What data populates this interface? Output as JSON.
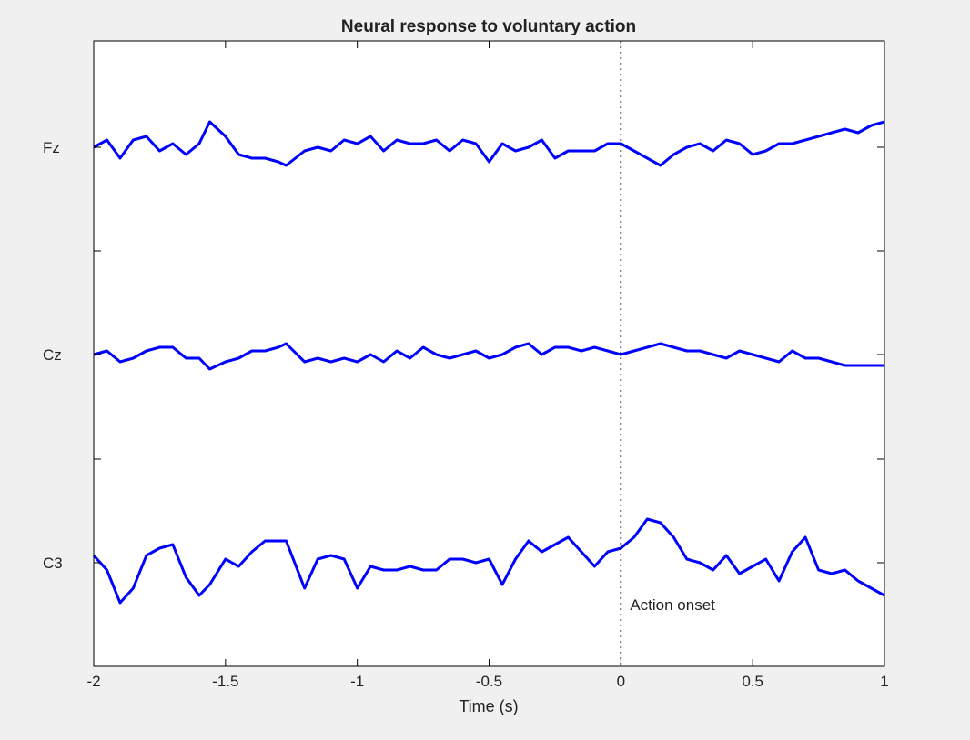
{
  "chart_data": {
    "type": "line",
    "title": "Neural response to voluntary action",
    "xlabel": "Time (s)",
    "ylabel": "",
    "xlim": [
      -2,
      1
    ],
    "x_ticks": [
      -2,
      -1.5,
      -1,
      -0.5,
      0,
      0.5,
      1
    ],
    "x_tick_labels": [
      "-2",
      "-1.5",
      "-1",
      "-0.5",
      "0",
      "0.5",
      "1"
    ],
    "channels": [
      "Fz",
      "Cz",
      "C3"
    ],
    "y_ticks": [
      "Fz",
      "",
      "Cz",
      "",
      "C3"
    ],
    "grid": false,
    "line_color": "#0000ff",
    "annotation": {
      "x": 0,
      "label": "Action onset",
      "line_style": "dotted"
    },
    "series": [
      {
        "name": "Fz",
        "x": [
          -2.0,
          -1.95,
          -1.9,
          -1.85,
          -1.8,
          -1.75,
          -1.7,
          -1.65,
          -1.6,
          -1.56,
          -1.5,
          -1.45,
          -1.4,
          -1.35,
          -1.3,
          -1.27,
          -1.2,
          -1.15,
          -1.1,
          -1.05,
          -1.0,
          -0.95,
          -0.9,
          -0.85,
          -0.8,
          -0.75,
          -0.7,
          -0.65,
          -0.6,
          -0.55,
          -0.5,
          -0.45,
          -0.4,
          -0.35,
          -0.3,
          -0.25,
          -0.2,
          -0.15,
          -0.1,
          -0.05,
          0.0,
          0.05,
          0.1,
          0.15,
          0.2,
          0.25,
          0.3,
          0.35,
          0.4,
          0.45,
          0.5,
          0.55,
          0.6,
          0.65,
          0.7,
          0.75,
          0.8,
          0.85,
          0.9,
          0.95,
          1.0
        ],
        "y": [
          0.0,
          0.1,
          -0.15,
          0.1,
          0.15,
          -0.05,
          0.05,
          -0.1,
          0.05,
          0.35,
          0.15,
          -0.1,
          -0.15,
          -0.15,
          -0.2,
          -0.25,
          -0.05,
          0.0,
          -0.05,
          0.1,
          0.05,
          0.15,
          -0.05,
          0.1,
          0.05,
          0.05,
          0.1,
          -0.05,
          0.1,
          0.05,
          -0.2,
          0.05,
          -0.05,
          0.0,
          0.1,
          -0.15,
          -0.05,
          -0.05,
          -0.05,
          0.05,
          0.05,
          -0.05,
          -0.15,
          -0.25,
          -0.1,
          0.0,
          0.05,
          -0.05,
          0.1,
          0.05,
          -0.1,
          -0.05,
          0.05,
          0.05,
          0.1,
          0.15,
          0.2,
          0.25,
          0.2,
          0.3,
          0.35
        ]
      },
      {
        "name": "Cz",
        "x": [
          -2.0,
          -1.95,
          -1.9,
          -1.85,
          -1.8,
          -1.75,
          -1.7,
          -1.65,
          -1.6,
          -1.56,
          -1.5,
          -1.45,
          -1.4,
          -1.35,
          -1.3,
          -1.27,
          -1.2,
          -1.15,
          -1.1,
          -1.05,
          -1.0,
          -0.95,
          -0.9,
          -0.85,
          -0.8,
          -0.75,
          -0.7,
          -0.65,
          -0.6,
          -0.55,
          -0.5,
          -0.45,
          -0.4,
          -0.35,
          -0.3,
          -0.25,
          -0.2,
          -0.15,
          -0.1,
          -0.05,
          0.0,
          0.05,
          0.1,
          0.15,
          0.2,
          0.25,
          0.3,
          0.35,
          0.4,
          0.45,
          0.5,
          0.55,
          0.6,
          0.65,
          0.7,
          0.75,
          0.8,
          0.85,
          0.9,
          0.95,
          1.0
        ],
        "y": [
          0.0,
          0.05,
          -0.1,
          -0.05,
          0.05,
          0.1,
          0.1,
          -0.05,
          -0.05,
          -0.2,
          -0.1,
          -0.05,
          0.05,
          0.05,
          0.1,
          0.15,
          -0.1,
          -0.05,
          -0.1,
          -0.05,
          -0.1,
          0.0,
          -0.1,
          0.05,
          -0.05,
          0.1,
          0.0,
          -0.05,
          0.0,
          0.05,
          -0.05,
          0.0,
          0.1,
          0.15,
          0.0,
          0.1,
          0.1,
          0.05,
          0.1,
          0.05,
          0.0,
          0.05,
          0.1,
          0.15,
          0.1,
          0.05,
          0.05,
          0.0,
          -0.05,
          0.05,
          0.0,
          -0.05,
          -0.1,
          0.05,
          -0.05,
          -0.05,
          -0.1,
          -0.15,
          -0.15,
          -0.15,
          -0.15
        ]
      },
      {
        "name": "C3",
        "x": [
          -2.0,
          -1.95,
          -1.9,
          -1.85,
          -1.8,
          -1.75,
          -1.7,
          -1.65,
          -1.6,
          -1.56,
          -1.5,
          -1.45,
          -1.4,
          -1.35,
          -1.3,
          -1.27,
          -1.2,
          -1.15,
          -1.1,
          -1.05,
          -1.0,
          -0.95,
          -0.9,
          -0.85,
          -0.8,
          -0.75,
          -0.7,
          -0.65,
          -0.6,
          -0.55,
          -0.5,
          -0.45,
          -0.4,
          -0.35,
          -0.3,
          -0.25,
          -0.2,
          -0.15,
          -0.1,
          -0.05,
          0.0,
          0.05,
          0.1,
          0.15,
          0.2,
          0.25,
          0.3,
          0.35,
          0.4,
          0.45,
          0.5,
          0.55,
          0.6,
          0.65,
          0.7,
          0.75,
          0.8,
          0.85,
          0.9,
          0.95,
          1.0
        ],
        "y": [
          0.1,
          -0.1,
          -0.55,
          -0.35,
          0.1,
          0.2,
          0.25,
          -0.2,
          -0.45,
          -0.3,
          0.05,
          -0.05,
          0.15,
          0.3,
          0.3,
          0.3,
          -0.35,
          0.05,
          0.1,
          0.05,
          -0.35,
          -0.05,
          -0.1,
          -0.1,
          -0.05,
          -0.1,
          -0.1,
          0.05,
          0.05,
          0.0,
          0.05,
          -0.3,
          0.05,
          0.3,
          0.15,
          0.25,
          0.35,
          0.15,
          -0.05,
          0.15,
          0.2,
          0.35,
          0.6,
          0.55,
          0.35,
          0.05,
          0.0,
          -0.1,
          0.1,
          -0.15,
          -0.05,
          0.05,
          -0.25,
          0.15,
          0.35,
          -0.1,
          -0.15,
          -0.1,
          -0.25,
          -0.35,
          -0.45
        ]
      }
    ]
  }
}
